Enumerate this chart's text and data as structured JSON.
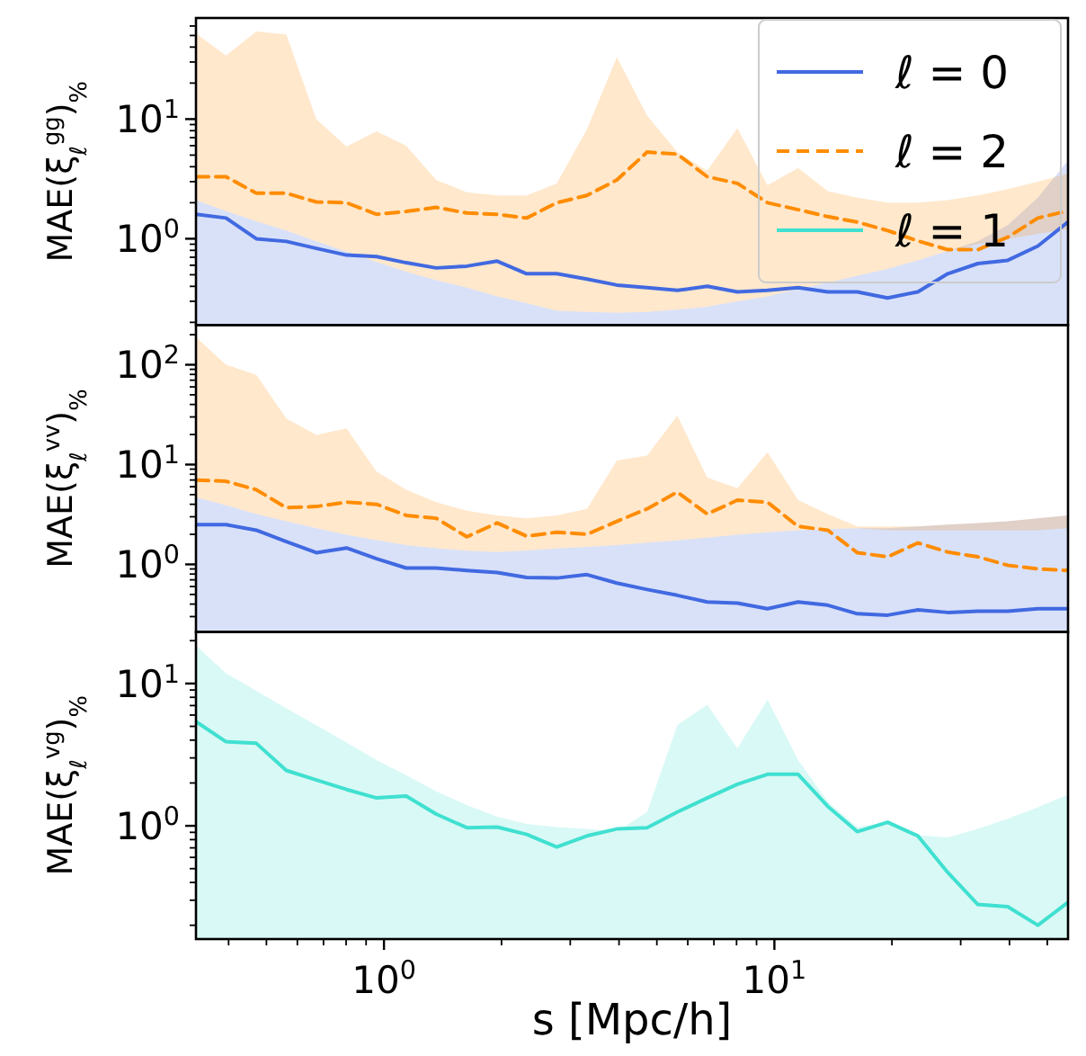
{
  "chart_data": [
    {
      "type": "line",
      "ylabel": "MAE(ξ$_{ℓ}$$^{gg}$)$_{%}$",
      "log": "xy",
      "legend": "top right",
      "tick_labels": "y",
      "x": [
        0.33,
        0.394,
        0.471,
        0.562,
        0.671,
        0.802,
        0.957,
        1.14,
        1.36,
        1.63,
        1.95,
        2.32,
        2.77,
        3.31,
        3.95,
        4.72,
        5.64,
        6.73,
        8.04,
        9.6,
        11.5,
        13.7,
        16.3,
        19.5,
        23.3,
        27.8,
        33.2,
        39.6,
        47.3,
        56.5
      ],
      "xlim": [
        0.33,
        56.5
      ],
      "ylim": [
        0.19,
        70
      ],
      "yticks": [
        {
          "value": 0.2,
          "label": null
        },
        {
          "value": 0.3,
          "label": null
        },
        {
          "value": 0.4,
          "label": null
        },
        {
          "value": 0.5,
          "label": null
        },
        {
          "value": 0.6,
          "label": null
        },
        {
          "value": 0.7,
          "label": null
        },
        {
          "value": 0.8,
          "label": null
        },
        {
          "value": 0.9,
          "label": null
        },
        {
          "value": 1,
          "label": "10$^{0}$"
        },
        {
          "value": 2,
          "label": null
        },
        {
          "value": 3,
          "label": null
        },
        {
          "value": 4,
          "label": null
        },
        {
          "value": 5,
          "label": null
        },
        {
          "value": 6,
          "label": null
        },
        {
          "value": 7,
          "label": null
        },
        {
          "value": 8,
          "label": null
        },
        {
          "value": 9,
          "label": null
        },
        {
          "value": 10,
          "label": "10$^{1}$"
        },
        {
          "value": 20,
          "label": null
        },
        {
          "value": 30,
          "label": null
        },
        {
          "value": 40,
          "label": null
        },
        {
          "value": 50,
          "label": null
        },
        {
          "value": 60,
          "label": null
        }
      ],
      "series": [
        {
          "name": "ℓ = 0",
          "color": "#4169e1",
          "line_style": "solid",
          "values": [
            1.6,
            1.49,
            1.0,
            0.95,
            0.83,
            0.73,
            0.71,
            0.63,
            0.57,
            0.59,
            0.65,
            0.51,
            0.51,
            0.46,
            0.41,
            0.39,
            0.37,
            0.4,
            0.36,
            0.37,
            0.39,
            0.36,
            0.36,
            0.32,
            0.36,
            0.51,
            0.62,
            0.66,
            0.87,
            1.38
          ],
          "lower": [
            0.19,
            0.19,
            0.19,
            0.19,
            0.19,
            0.19,
            0.19,
            0.19,
            0.19,
            0.19,
            0.19,
            0.19,
            0.19,
            0.19,
            0.19,
            0.19,
            0.19,
            0.19,
            0.19,
            0.19,
            0.19,
            0.19,
            0.19,
            0.19,
            0.19,
            0.19,
            0.19,
            0.19,
            0.19,
            0.19
          ],
          "upper": [
            2.1,
            1.7,
            1.4,
            1.17,
            0.95,
            0.78,
            0.64,
            0.53,
            0.45,
            0.39,
            0.33,
            0.29,
            0.25,
            0.245,
            0.24,
            0.245,
            0.255,
            0.27,
            0.3,
            0.33,
            0.38,
            0.43,
            0.49,
            0.56,
            0.66,
            0.79,
            0.95,
            1.3,
            2.2,
            4.5
          ]
        },
        {
          "name": "ℓ = 2",
          "color": "#ff8c00",
          "line_style": "dashed",
          "values": [
            3.3,
            3.3,
            2.4,
            2.4,
            2.03,
            2.0,
            1.6,
            1.69,
            1.83,
            1.64,
            1.6,
            1.49,
            2.0,
            2.3,
            3.1,
            5.3,
            5.1,
            3.3,
            2.9,
            2.0,
            1.75,
            1.53,
            1.38,
            1.17,
            0.96,
            0.81,
            0.81,
            1.03,
            1.49,
            1.71
          ],
          "lower": [
            2.1,
            1.7,
            1.4,
            1.17,
            0.95,
            0.78,
            0.64,
            0.53,
            0.45,
            0.39,
            0.33,
            0.29,
            0.25,
            0.245,
            0.24,
            0.245,
            0.255,
            0.27,
            0.3,
            0.33,
            0.38,
            0.43,
            0.49,
            0.56,
            0.66,
            0.79,
            0.9,
            1.0,
            1.1,
            1.2
          ],
          "upper": [
            52,
            34,
            54,
            51,
            10,
            5.9,
            7.9,
            6.0,
            3.1,
            2.45,
            2.3,
            2.3,
            2.9,
            8.2,
            33,
            10.7,
            5.3,
            3.7,
            8.4,
            2.8,
            3.9,
            2.5,
            2.2,
            2.0,
            2.0,
            2.1,
            2.3,
            2.6,
            3.0,
            3.5
          ]
        }
      ]
    },
    {
      "type": "line",
      "ylabel": "MAE(ξ$_{ℓ}$$^{vv}$)$_{%}$",
      "log": "xy",
      "tick_labels": "y",
      "x": [
        0.33,
        0.394,
        0.471,
        0.562,
        0.671,
        0.802,
        0.957,
        1.14,
        1.36,
        1.63,
        1.95,
        2.32,
        2.77,
        3.31,
        3.95,
        4.72,
        5.64,
        6.73,
        8.04,
        9.6,
        11.5,
        13.7,
        16.3,
        19.5,
        23.3,
        27.8,
        33.2,
        39.6,
        47.3,
        56.5
      ],
      "xlim": [
        0.33,
        56.5
      ],
      "ylim": [
        0.21,
        250
      ],
      "yticks": [
        {
          "value": 0.3,
          "label": null
        },
        {
          "value": 0.4,
          "label": null
        },
        {
          "value": 0.5,
          "label": null
        },
        {
          "value": 0.6,
          "label": null
        },
        {
          "value": 0.7,
          "label": null
        },
        {
          "value": 0.8,
          "label": null
        },
        {
          "value": 0.9,
          "label": null
        },
        {
          "value": 1,
          "label": "10$^{0}$"
        },
        {
          "value": 2,
          "label": null
        },
        {
          "value": 3,
          "label": null
        },
        {
          "value": 4,
          "label": null
        },
        {
          "value": 5,
          "label": null
        },
        {
          "value": 6,
          "label": null
        },
        {
          "value": 7,
          "label": null
        },
        {
          "value": 8,
          "label": null
        },
        {
          "value": 9,
          "label": null
        },
        {
          "value": 10,
          "label": "10$^{1}$"
        },
        {
          "value": 20,
          "label": null
        },
        {
          "value": 30,
          "label": null
        },
        {
          "value": 40,
          "label": null
        },
        {
          "value": 50,
          "label": null
        },
        {
          "value": 60,
          "label": null
        },
        {
          "value": 70,
          "label": null
        },
        {
          "value": 80,
          "label": null
        },
        {
          "value": 90,
          "label": null
        },
        {
          "value": 100,
          "label": "10$^{2}$"
        },
        {
          "value": 200,
          "label": null
        }
      ],
      "series": [
        {
          "color": "#4169e1",
          "line_style": "solid",
          "values": [
            2.5,
            2.5,
            2.2,
            1.69,
            1.31,
            1.46,
            1.14,
            0.92,
            0.92,
            0.87,
            0.83,
            0.74,
            0.73,
            0.79,
            0.65,
            0.56,
            0.49,
            0.42,
            0.41,
            0.36,
            0.42,
            0.39,
            0.32,
            0.31,
            0.35,
            0.33,
            0.34,
            0.34,
            0.36,
            0.36
          ],
          "lower": [
            0.21,
            0.21,
            0.21,
            0.21,
            0.21,
            0.21,
            0.21,
            0.21,
            0.21,
            0.21,
            0.21,
            0.21,
            0.21,
            0.21,
            0.21,
            0.21,
            0.21,
            0.21,
            0.21,
            0.21,
            0.21,
            0.21,
            0.21,
            0.21,
            0.21,
            0.21,
            0.21,
            0.21,
            0.21,
            0.21
          ],
          "upper": [
            4.7,
            3.9,
            3.2,
            2.7,
            2.3,
            1.98,
            1.75,
            1.56,
            1.45,
            1.37,
            1.33,
            1.38,
            1.44,
            1.5,
            1.56,
            1.65,
            1.74,
            1.85,
            1.98,
            2.1,
            2.2,
            2.25,
            2.3,
            2.3,
            2.4,
            2.5,
            2.6,
            2.7,
            2.9,
            3.1
          ]
        },
        {
          "color": "#ff8c00",
          "line_style": "dashed",
          "values": [
            7.0,
            6.8,
            5.6,
            3.7,
            3.8,
            4.2,
            4.0,
            3.1,
            2.9,
            1.89,
            2.6,
            1.92,
            2.1,
            2.0,
            2.7,
            3.6,
            5.3,
            3.2,
            4.4,
            4.2,
            2.4,
            2.2,
            1.31,
            1.19,
            1.64,
            1.33,
            1.19,
            0.98,
            0.9,
            0.87
          ],
          "lower": [
            4.7,
            3.9,
            3.2,
            2.7,
            2.3,
            1.98,
            1.75,
            1.56,
            1.45,
            1.37,
            1.33,
            1.38,
            1.44,
            1.5,
            1.56,
            1.65,
            1.74,
            1.85,
            1.98,
            2.1,
            2.2,
            2.25,
            2.3,
            2.2,
            2.2,
            2.2,
            2.2,
            2.2,
            2.2,
            2.3
          ],
          "upper": [
            189,
            100,
            79,
            29,
            19.8,
            23,
            8.5,
            5.6,
            4.2,
            3.45,
            3.1,
            2.9,
            3.1,
            3.6,
            11,
            12.3,
            31,
            7.4,
            5.8,
            13.3,
            4.4,
            3.2,
            2.4,
            2.4,
            2.4,
            2.5,
            2.6,
            2.7,
            2.9,
            3.1
          ]
        }
      ]
    },
    {
      "type": "line",
      "ylabel": "MAE(ξ$_{ℓ}$$^{vg}$)$_{%}$",
      "xlabel": "s [Mpc/h]",
      "log": "xy",
      "x": [
        0.33,
        0.394,
        0.471,
        0.562,
        0.671,
        0.802,
        0.957,
        1.14,
        1.36,
        1.63,
        1.95,
        2.32,
        2.77,
        3.31,
        3.95,
        4.72,
        5.64,
        6.73,
        8.04,
        9.6,
        11.5,
        13.7,
        16.3,
        19.5,
        23.3,
        27.8,
        33.2,
        39.6,
        47.3,
        56.5
      ],
      "xlim": [
        0.33,
        56.5
      ],
      "ylim": [
        0.16,
        23
      ],
      "xticks": [
        {
          "value": 0.4,
          "label": null
        },
        {
          "value": 0.5,
          "label": null
        },
        {
          "value": 0.6,
          "label": null
        },
        {
          "value": 0.7,
          "label": null
        },
        {
          "value": 0.8,
          "label": null
        },
        {
          "value": 0.9,
          "label": null
        },
        {
          "value": 1,
          "label": "10$^{0}$"
        },
        {
          "value": 2,
          "label": null
        },
        {
          "value": 3,
          "label": null
        },
        {
          "value": 4,
          "label": null
        },
        {
          "value": 5,
          "label": null
        },
        {
          "value": 6,
          "label": null
        },
        {
          "value": 7,
          "label": null
        },
        {
          "value": 8,
          "label": null
        },
        {
          "value": 9,
          "label": null
        },
        {
          "value": 10,
          "label": "10$^{1}$"
        },
        {
          "value": 20,
          "label": null
        },
        {
          "value": 30,
          "label": null
        },
        {
          "value": 40,
          "label": null
        },
        {
          "value": 50,
          "label": null
        }
      ],
      "yticks": [
        {
          "value": 0.2,
          "label": null
        },
        {
          "value": 0.3,
          "label": null
        },
        {
          "value": 0.4,
          "label": null
        },
        {
          "value": 0.5,
          "label": null
        },
        {
          "value": 0.6,
          "label": null
        },
        {
          "value": 0.7,
          "label": null
        },
        {
          "value": 0.8,
          "label": null
        },
        {
          "value": 0.9,
          "label": null
        },
        {
          "value": 1,
          "label": "10$^{0}$"
        },
        {
          "value": 2,
          "label": null
        },
        {
          "value": 3,
          "label": null
        },
        {
          "value": 4,
          "label": null
        },
        {
          "value": 5,
          "label": null
        },
        {
          "value": 6,
          "label": null
        },
        {
          "value": 7,
          "label": null
        },
        {
          "value": 8,
          "label": null
        },
        {
          "value": 9,
          "label": null
        },
        {
          "value": 10,
          "label": "10$^{1}$"
        },
        {
          "value": 20,
          "label": null
        }
      ],
      "series": [
        {
          "name": "ℓ = 1",
          "color": "#40e0d0",
          "line_style": "solid",
          "values": [
            5.4,
            3.9,
            3.8,
            2.45,
            2.1,
            1.8,
            1.57,
            1.62,
            1.21,
            0.97,
            0.98,
            0.87,
            0.71,
            0.85,
            0.95,
            0.97,
            1.25,
            1.57,
            1.96,
            2.3,
            2.3,
            1.37,
            0.91,
            1.06,
            0.85,
            0.47,
            0.28,
            0.27,
            0.2,
            0.29
          ],
          "lower": [
            0.16,
            0.16,
            0.16,
            0.16,
            0.16,
            0.16,
            0.16,
            0.16,
            0.16,
            0.16,
            0.16,
            0.16,
            0.16,
            0.16,
            0.16,
            0.16,
            0.16,
            0.16,
            0.16,
            0.16,
            0.16,
            0.16,
            0.16,
            0.16,
            0.16,
            0.16,
            0.16,
            0.16,
            0.16,
            0.16
          ],
          "upper": [
            18.5,
            11.8,
            8.9,
            6.7,
            5.1,
            3.85,
            2.9,
            2.27,
            1.75,
            1.4,
            1.16,
            1.03,
            0.98,
            0.95,
            0.91,
            1.25,
            5.1,
            7.1,
            3.5,
            7.7,
            2.9,
            1.48,
            0.98,
            1.06,
            0.86,
            0.83,
            0.95,
            1.12,
            1.35,
            1.66
          ]
        }
      ]
    }
  ]
}
